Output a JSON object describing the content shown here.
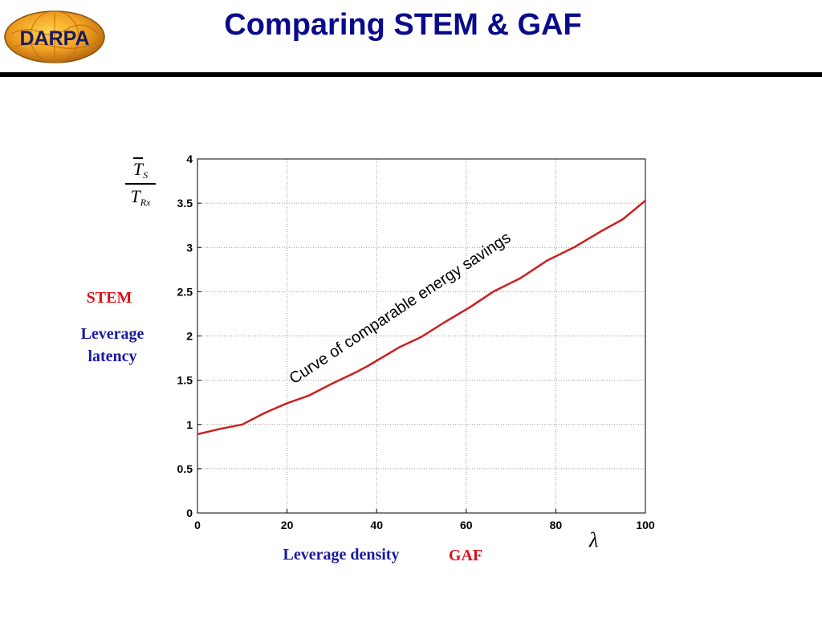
{
  "slide": {
    "title": "Comparing STEM & GAF",
    "logo_text": "DARPA",
    "left_labels": {
      "stem": "STEM",
      "stem_desc_line1": "Leverage",
      "stem_desc_line2": "latency"
    },
    "bottom_labels": {
      "density": "Leverage density",
      "gaf": "GAF"
    },
    "y_fraction": {
      "numerator": "T",
      "numerator_sub": "S",
      "denominator": "T",
      "denominator_sub": "Rx"
    },
    "x_symbol": "λ",
    "colors": {
      "title": "#0a0a8c",
      "label_blue": "#1a1aa0",
      "label_red": "#e0101a",
      "curve": "#cc1f1f"
    }
  },
  "chart_data": {
    "type": "line",
    "xlim": [
      0,
      100
    ],
    "ylim": [
      0,
      4
    ],
    "x_ticks": [
      "0",
      "20",
      "40",
      "60",
      "80",
      "100"
    ],
    "y_ticks": [
      "0",
      "0.5",
      "1",
      "1.5",
      "2",
      "2.5",
      "3",
      "3.5",
      "4"
    ],
    "grid": true,
    "annotation": "Curve of comparable energy savings",
    "series": [
      {
        "color": "#cc1f1f",
        "x": [
          0,
          5,
          10,
          15,
          20,
          25,
          30,
          35,
          38,
          45,
          50,
          55,
          61,
          66,
          72,
          78,
          84,
          90,
          95,
          100
        ],
        "y": [
          0.89,
          0.95,
          1.0,
          1.13,
          1.24,
          1.33,
          1.46,
          1.58,
          1.66,
          1.87,
          1.99,
          2.15,
          2.33,
          2.5,
          2.65,
          2.85,
          3.0,
          3.18,
          3.32,
          3.53
        ]
      }
    ]
  }
}
